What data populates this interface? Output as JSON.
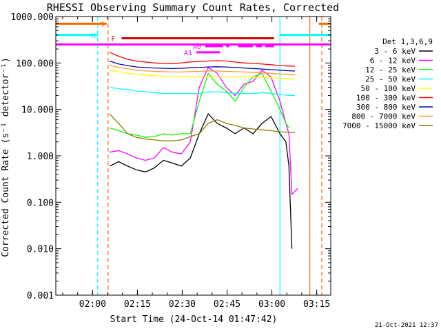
{
  "chart_data": {
    "type": "line",
    "title": "RHESSI Observing Summary Count Rates, Corrected",
    "xlabel": "Start Time (24-Oct-14 01:47:42)",
    "ylabel": "Corrected Count Rate (s⁻¹ detector⁻¹)",
    "yscale": "log",
    "ylim": [
      0.001,
      1000
    ],
    "xlim_minutes_after_start": [
      0,
      92
    ],
    "x_tick_labels": [
      "02:00",
      "02:15",
      "02:30",
      "02:45",
      "03:00",
      "03:15"
    ],
    "x_tick_minutes": [
      12.3,
      27.3,
      42.3,
      57.3,
      72.3,
      87.3
    ],
    "y_tick_labels": [
      "0.001",
      "0.010",
      "0.100",
      "1.000",
      "10.000",
      "100.000",
      "1000.000"
    ],
    "y_tick_values": [
      0.001,
      0.01,
      0.1,
      1,
      10,
      100,
      1000
    ],
    "legend_title": "Det 1,3,6,9",
    "legend_placement": "right",
    "timestamp": "21-Oct-2021 12:37",
    "series": [
      {
        "name": "3 - 6 keV",
        "color": "#000000",
        "x": [
          18,
          21,
          24,
          27,
          30,
          33,
          36,
          39,
          42,
          45,
          48,
          51,
          54,
          57,
          60,
          63,
          66,
          69,
          72,
          75,
          77,
          78,
          79
        ],
        "y": [
          0.6,
          0.75,
          0.6,
          0.5,
          0.45,
          0.55,
          0.8,
          0.7,
          0.6,
          0.9,
          3,
          8,
          5,
          4,
          3,
          4,
          3,
          5,
          7,
          3,
          2,
          0.6,
          0.01
        ]
      },
      {
        "name": "6 - 12 keV",
        "color": "#ff00ff",
        "x": [
          18,
          21,
          24,
          27,
          30,
          33,
          36,
          39,
          42,
          45,
          48,
          51,
          54,
          57,
          60,
          63,
          66,
          69,
          72,
          75,
          77,
          78,
          79,
          81
        ],
        "y": [
          1.2,
          1.3,
          1.1,
          0.9,
          0.8,
          0.9,
          1.5,
          1.2,
          1.1,
          2,
          30,
          80,
          60,
          30,
          20,
          35,
          40,
          70,
          50,
          15,
          5,
          3,
          0.15,
          0.2
        ]
      },
      {
        "name": "12 - 25 keV",
        "color": "#00ff00",
        "x": [
          18,
          21,
          24,
          27,
          30,
          33,
          36,
          39,
          42,
          45,
          48,
          51,
          54,
          57,
          60,
          63,
          66,
          69,
          72,
          75,
          77,
          78
        ],
        "y": [
          4,
          3.5,
          3,
          2.8,
          2.5,
          2.6,
          3,
          2.8,
          3,
          3,
          15,
          60,
          35,
          25,
          15,
          30,
          50,
          60,
          25,
          10,
          5,
          4
        ]
      },
      {
        "name": "25 - 50 keV",
        "color": "#00ffff",
        "x": [
          18,
          21,
          24,
          27,
          30,
          33,
          36,
          39,
          42,
          45,
          48,
          51,
          54,
          57,
          60,
          63,
          66,
          69,
          72,
          75,
          78,
          80
        ],
        "y": [
          30,
          28,
          27,
          25,
          24,
          23,
          22,
          22,
          22,
          22,
          22,
          24,
          24,
          23,
          22,
          22,
          22,
          23,
          22,
          21,
          20,
          20
        ]
      },
      {
        "name": "50 - 100 keV",
        "color": "#ffff00",
        "x": [
          18,
          21,
          24,
          27,
          30,
          33,
          36,
          39,
          42,
          45,
          48,
          51,
          54,
          57,
          60,
          63,
          66,
          69,
          72,
          75,
          78,
          80
        ],
        "y": [
          70,
          65,
          60,
          57,
          55,
          53,
          52,
          51,
          51,
          50,
          50,
          51,
          51,
          51,
          50,
          50,
          50,
          49,
          48,
          47,
          46,
          46
        ]
      },
      {
        "name": "100 - 300 keV",
        "color": "#ff0000",
        "x": [
          18,
          21,
          24,
          27,
          30,
          33,
          36,
          39,
          42,
          45,
          48,
          51,
          54,
          57,
          60,
          63,
          66,
          69,
          72,
          75,
          78,
          80
        ],
        "y": [
          170,
          140,
          120,
          110,
          105,
          100,
          98,
          97,
          100,
          105,
          108,
          110,
          112,
          110,
          105,
          100,
          98,
          95,
          92,
          88,
          86,
          85
        ]
      },
      {
        "name": "300 - 800 keV",
        "color": "#0000bb",
        "x": [
          18,
          21,
          24,
          27,
          30,
          33,
          36,
          39,
          42,
          45,
          48,
          51,
          54,
          57,
          60,
          63,
          66,
          69,
          72,
          75,
          78,
          80
        ],
        "y": [
          110,
          95,
          88,
          82,
          80,
          78,
          77,
          76,
          77,
          79,
          80,
          82,
          83,
          82,
          80,
          78,
          76,
          74,
          72,
          70,
          68,
          67
        ]
      },
      {
        "name": "800 - 7000 keV",
        "color": "#ff9933",
        "x": [
          18,
          21,
          24,
          27,
          30,
          33,
          36,
          39,
          42,
          45,
          48,
          51,
          54,
          57,
          60,
          63,
          66,
          69,
          72,
          75,
          78,
          80
        ],
        "y": [
          90,
          80,
          75,
          70,
          68,
          66,
          65,
          64,
          64,
          65,
          66,
          67,
          67,
          66,
          65,
          64,
          63,
          61,
          60,
          58,
          57,
          56
        ]
      },
      {
        "name": "7000 - 15000 keV",
        "color": "#8b7d00",
        "x": [
          18,
          21,
          24,
          27,
          30,
          33,
          36,
          39,
          42,
          45,
          48,
          51,
          54,
          57,
          60,
          63,
          66,
          69,
          72,
          75,
          78,
          80
        ],
        "y": [
          8,
          5,
          3,
          2.5,
          2.3,
          2.2,
          2.1,
          2.1,
          2.2,
          2.6,
          3,
          5,
          6,
          5,
          4.5,
          4,
          3.8,
          3.6,
          3.5,
          3.3,
          3.2,
          3.2
        ]
      }
    ],
    "flag_bars": [
      {
        "label": "S",
        "color": "#ff6600",
        "segments": [
          [
            0,
            17
          ]
        ],
        "level": 700,
        "extra_segments": [
          [
            88,
            92
          ]
        ]
      },
      {
        "label": "N",
        "color": "#00ffff",
        "segments": [
          [
            0,
            14
          ]
        ],
        "level": 400,
        "extra_segments": [
          [
            75,
            92
          ]
        ]
      },
      {
        "label": "F",
        "color": "#cc0000",
        "segments": [
          [
            22,
            73
          ]
        ],
        "level": 340
      },
      {
        "label": "A0",
        "color": "#ff00ff",
        "segments": [
          [
            50,
            56
          ],
          [
            57,
            58
          ],
          [
            61,
            66
          ],
          [
            67,
            69
          ],
          [
            70,
            73
          ]
        ],
        "level": 230
      },
      {
        "label": "A1",
        "color": "#ff00ff",
        "segments": [
          [
            47,
            55
          ]
        ],
        "level": 170
      },
      {
        "label": "",
        "color": "#ff00ff",
        "segments": [
          [
            0,
            92
          ]
        ],
        "level": 250
      }
    ],
    "vertical_lines": [
      {
        "x": 14,
        "color": "#00ffff",
        "style": "dashed"
      },
      {
        "x": 17.5,
        "color": "#ff6600",
        "style": "dashed"
      },
      {
        "x": 75,
        "color": "#00ffff",
        "style": "solid"
      },
      {
        "x": 85,
        "color": "#ff6600",
        "style": "solid"
      },
      {
        "x": 89,
        "color": "#ff6600",
        "style": "dashed"
      }
    ]
  }
}
